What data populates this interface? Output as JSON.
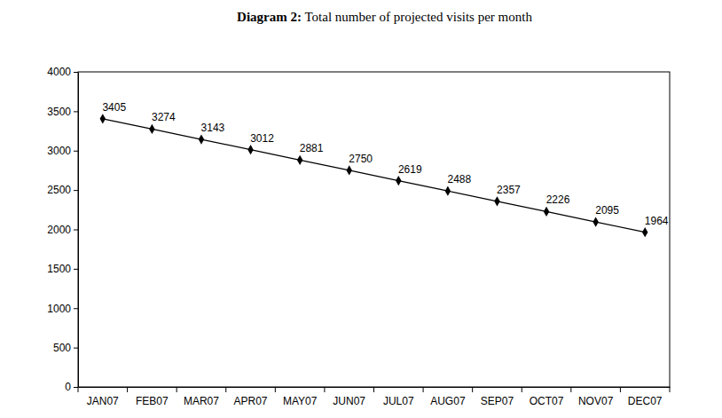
{
  "chart_data": {
    "type": "line",
    "title": "Diagram 2: Total number of projected visits per month",
    "categories": [
      "JAN07",
      "FEB07",
      "MAR07",
      "APR07",
      "MAY07",
      "JUN07",
      "JUL07",
      "AUG07",
      "SEP07",
      "OCT07",
      "NOV07",
      "DEC07"
    ],
    "values": [
      3405,
      3274,
      3143,
      3012,
      2881,
      2750,
      2619,
      2488,
      2357,
      2226,
      2095,
      1964
    ],
    "color": "#000000",
    "marker": "diamond",
    "line_style": "solid",
    "data_labels": true,
    "grid": false,
    "ylim": [
      0,
      4000
    ],
    "yticks": [
      0,
      500,
      1000,
      1500,
      2000,
      2500,
      3000,
      3500,
      4000
    ]
  }
}
